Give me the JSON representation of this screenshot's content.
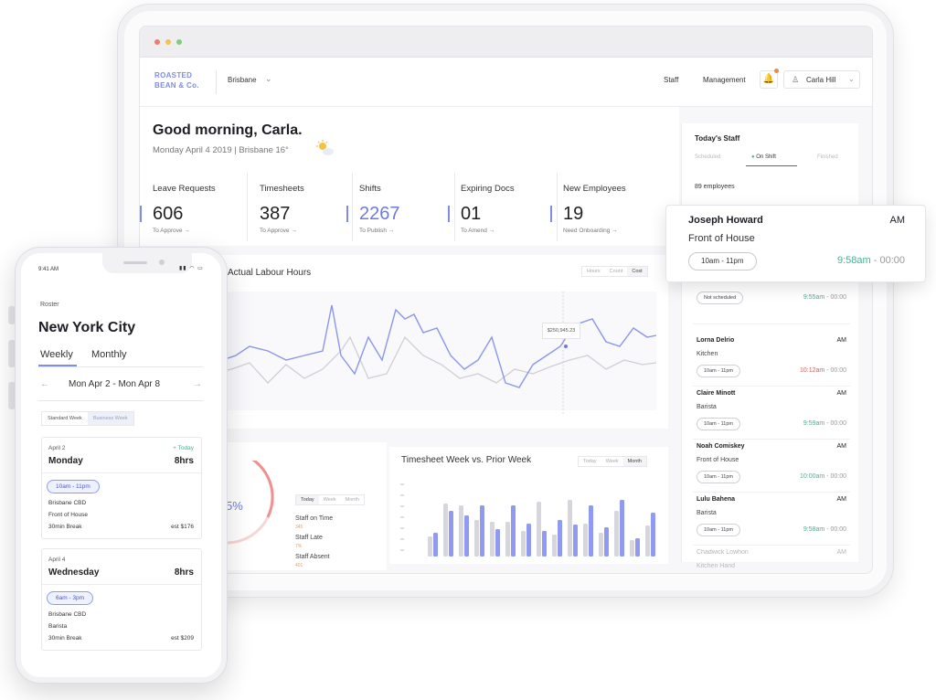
{
  "tablet": {
    "logo": [
      "ROASTED",
      "BEAN & Co."
    ],
    "location": "Brisbane",
    "nav": {
      "staff": "Staff",
      "management": "Management",
      "user": "Carla Hill"
    },
    "greeting": "Good morning, Carla.",
    "greeting_sub": "Monday April 4 2019  |  Brisbane 16°",
    "stats": [
      {
        "label": "Leave Requests",
        "value": "606",
        "link": "To Approve  →"
      },
      {
        "label": "Timesheets",
        "value": "387",
        "link": "To Approve  →"
      },
      {
        "label": "Shifts",
        "value": "2267",
        "link": "To Publish  →"
      },
      {
        "label": "Expiring Docs",
        "value": "01",
        "link": "To Amend  →"
      },
      {
        "label": "New Employees",
        "value": "19",
        "link": "Need Onboarding  →"
      }
    ],
    "labour_chart": {
      "title": "Actual Labour Hours",
      "toggle": [
        "Hours",
        "Count",
        "Cost"
      ],
      "tooltip": "$250,945.23"
    },
    "bottom_left": {
      "percent_text": "5%",
      "toggle": [
        "Today",
        "Week",
        "Month"
      ],
      "rows": [
        {
          "label": "Staff on Time",
          "value": "345"
        },
        {
          "label": "Staff Late",
          "value": "7%"
        },
        {
          "label": "Staff Absent",
          "value": "401"
        }
      ]
    },
    "timesheet_chart": {
      "title": "Timesheet Week vs. Prior Week",
      "toggle": [
        "Today",
        "Week",
        "Month"
      ]
    },
    "staff_panel": {
      "title": "Today's Staff",
      "tabs": [
        "Scheduled",
        "On Shift",
        "Finished"
      ],
      "count": "89 employees",
      "rows": [
        {
          "name": "",
          "ampm": "",
          "role": "",
          "pill": "Not scheduled",
          "time": "9:55am",
          "end": " - 00:00",
          "late": false
        },
        {
          "name": "Lorna Delrio",
          "ampm": "AM",
          "role": "Kitchen",
          "pill": "10am - 11pm",
          "time": "10:12am",
          "end": " - 00:00",
          "late": true
        },
        {
          "name": "Claire Minott",
          "ampm": "AM",
          "role": "Barista",
          "pill": "10am - 11pm",
          "time": "9:59am",
          "end": " - 00:00",
          "late": false
        },
        {
          "name": "Noah Comiskey",
          "ampm": "AM",
          "role": "Front of House",
          "pill": "10am - 11pm",
          "time": "10:00am",
          "end": " - 00:00",
          "late": false
        },
        {
          "name": "Lulu Bahena",
          "ampm": "AM",
          "role": "Barista",
          "pill": "10am - 11pm",
          "time": "9:58am",
          "end": " - 00:00",
          "late": false
        },
        {
          "name": "Chadwick Lowhon",
          "ampm": "AM",
          "role": "Kitchen Hand",
          "pill": "",
          "time": "",
          "end": "",
          "late": false
        }
      ]
    },
    "floating_card": {
      "name": "Joseph Howard",
      "ampm": "AM",
      "role": "Front of House",
      "pill": "10am - 11pm",
      "time": "9:58am",
      "end": " - 00:00"
    }
  },
  "phone": {
    "status_time": "9:41 AM",
    "section": "Roster",
    "city": "New York City",
    "tabs": [
      "Weekly",
      "Monthly"
    ],
    "range": "Mon Apr 2 - Mon Apr 8",
    "filter": [
      "Standard Week",
      "Business Week"
    ],
    "days": [
      {
        "date": "April 2",
        "today": "+ Today",
        "day": "Monday",
        "hours": "8hrs",
        "shift": "10am - 11pm",
        "place": "Brisbane CBD",
        "role": "Front of House",
        "break": "30min Break",
        "est": "est $176"
      },
      {
        "date": "April 4",
        "today": "",
        "day": "Wednesday",
        "hours": "8hrs",
        "shift": "6am - 3pm",
        "place": "Brisbane CBD",
        "role": "Barista",
        "break": "30min Break",
        "est": "est $209"
      }
    ]
  },
  "colors": {
    "accent": "#7e8be8",
    "green": "#48b294",
    "red": "#e25a5a",
    "grey_line": "#c9c9ce"
  }
}
